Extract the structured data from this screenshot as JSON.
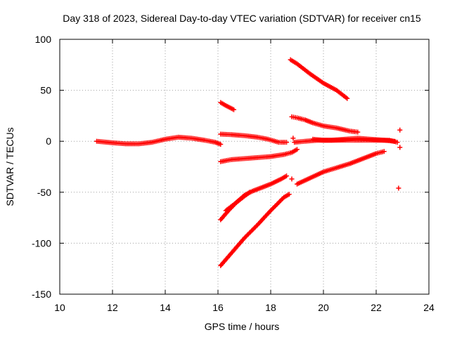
{
  "chart_data": {
    "type": "scatter",
    "title": "Day 318 of 2023, Sidereal Day-to-day VTEC variation (SDTVAR) for receiver cn15",
    "xlabel": "GPS time / hours",
    "ylabel": "SDTVAR / TECUs",
    "xlim": [
      10,
      24
    ],
    "ylim": [
      -150,
      100
    ],
    "xticks": [
      10,
      12,
      14,
      16,
      18,
      20,
      22,
      24
    ],
    "yticks": [
      -150,
      -100,
      -50,
      0,
      50,
      100
    ],
    "grid": true,
    "marker": "+",
    "color": "#ff0000",
    "series": [
      {
        "name": "arc-1",
        "x": [
          11.4,
          12.0,
          12.5,
          13.0,
          13.5,
          14.0,
          14.5,
          15.0,
          15.5,
          15.9,
          16.1
        ],
        "y": [
          0,
          -1.5,
          -2.5,
          -2.5,
          -1,
          2,
          4,
          3,
          1,
          -1,
          -3
        ]
      },
      {
        "name": "arc-2",
        "x": [
          16.1,
          16.3,
          16.6
        ],
        "y": [
          38,
          35,
          31
        ]
      },
      {
        "name": "arc-3",
        "x": [
          16.1,
          16.5,
          17.0,
          17.5,
          17.9,
          18.3,
          18.6
        ],
        "y": [
          7,
          6.5,
          5.5,
          4,
          2,
          -1,
          -1
        ]
      },
      {
        "name": "arc-4",
        "x": [
          16.1,
          16.5,
          17.0,
          17.5,
          18.0,
          18.5,
          18.8,
          19.0
        ],
        "y": [
          -20,
          -18,
          -17,
          -16,
          -15,
          -13,
          -11,
          -8
        ]
      },
      {
        "name": "arc-5",
        "x": [
          16.1,
          16.5,
          17.0,
          17.5,
          18.0,
          18.5,
          18.7
        ],
        "y": [
          -122,
          -110,
          -95,
          -82,
          -68,
          -55,
          -52
        ]
      },
      {
        "name": "arc-6",
        "x": [
          16.1,
          16.4,
          16.7,
          17.0,
          17.3,
          17.6,
          18.0,
          18.4,
          18.6
        ],
        "y": [
          -77,
          -68,
          -60,
          -53,
          -49,
          -46,
          -42,
          -37,
          -34
        ]
      },
      {
        "name": "arc-7",
        "x": [
          16.3,
          16.6,
          16.9,
          17.2
        ],
        "y": [
          -68,
          -62,
          -56,
          -50
        ]
      },
      {
        "name": "arc-8",
        "x": [
          18.75,
          19.0,
          19.5,
          20.0,
          20.5,
          20.9
        ],
        "y": [
          80,
          76,
          66,
          57,
          50,
          42
        ]
      },
      {
        "name": "arc-9",
        "x": [
          18.8,
          19.0,
          19.3,
          19.6,
          20.0,
          20.5,
          21.0,
          21.3
        ],
        "y": [
          24,
          23,
          21,
          18,
          15,
          13,
          10,
          9
        ]
      },
      {
        "name": "arc-10",
        "x": [
          18.9,
          19.3,
          19.8,
          20.3,
          20.8,
          21.3,
          21.8,
          22.3,
          22.7
        ],
        "y": [
          -1,
          0,
          1,
          1,
          2,
          3,
          2,
          1,
          0
        ]
      },
      {
        "name": "arc-11",
        "x": [
          19.0,
          19.5,
          20.0,
          20.5,
          21.0,
          21.5,
          22.0,
          22.3
        ],
        "y": [
          -42,
          -36,
          -30,
          -26,
          -22,
          -17,
          -12,
          -10
        ]
      },
      {
        "name": "arc-12",
        "x": [
          19.6,
          20.0,
          20.5,
          21.0,
          21.5,
          22.0,
          22.5,
          22.8
        ],
        "y": [
          2,
          1,
          1,
          1,
          1,
          1,
          1,
          -1
        ]
      },
      {
        "name": "isolated",
        "x": [
          18.85,
          18.8,
          22.9,
          22.9,
          22.85
        ],
        "y": [
          3,
          -37,
          11,
          -6,
          -46
        ]
      }
    ]
  }
}
